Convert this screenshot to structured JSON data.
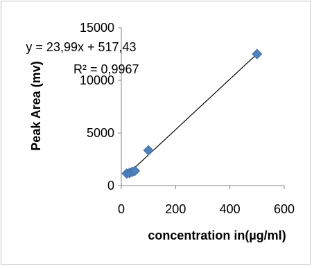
{
  "chart_data": {
    "type": "scatter",
    "title": "",
    "xlabel": "concentration in(µg/ml)",
    "ylabel": "Peak Area (mv)",
    "xlim": [
      0,
      600
    ],
    "ylim": [
      0,
      15000
    ],
    "x_ticks": [
      0,
      200,
      400,
      600
    ],
    "y_ticks": [
      0,
      5000,
      10000,
      15000
    ],
    "x_tick_labels": [
      "0",
      "200",
      "400",
      "600"
    ],
    "y_tick_labels": [
      "0",
      "5000",
      "10000",
      "15000"
    ],
    "grid": false,
    "legend": "none",
    "series": [
      {
        "points": [
          {
            "x": 20,
            "y": 1150
          },
          {
            "x": 30,
            "y": 1200
          },
          {
            "x": 40,
            "y": 1300
          },
          {
            "x": 50,
            "y": 1400
          },
          {
            "x": 100,
            "y": 3350
          },
          {
            "x": 500,
            "y": 12500
          }
        ],
        "marker": "diamond",
        "color": "#4F81BD"
      }
    ],
    "trendline": {
      "slope": 23.99,
      "intercept": 517.43,
      "x_range": [
        20,
        500
      ],
      "color": "#000000"
    },
    "annotations": {
      "equation": "y = 23,99x + 517,43",
      "r_squared": "R² = 0,9967"
    }
  }
}
